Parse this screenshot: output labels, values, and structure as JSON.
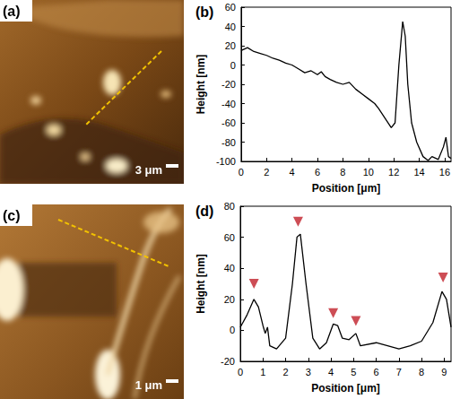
{
  "images": [
    {
      "label": "(a)",
      "scale_bar": "3 μm"
    },
    {
      "label": "(c)",
      "scale_bar": "1 μm"
    }
  ],
  "chart_data": [
    {
      "type": "line",
      "label": "(b)",
      "x_label": "Position [μm]",
      "y_label": "Height [nm]",
      "x": [
        0,
        0.5,
        1,
        1.5,
        2,
        2.5,
        3,
        3.5,
        4,
        4.5,
        5,
        5.5,
        6,
        6.3,
        6.6,
        7,
        7.5,
        8,
        8.5,
        9,
        9.5,
        10,
        10.5,
        10.8,
        11.3,
        11.8,
        12.1,
        12.4,
        12.7,
        12.9,
        13.1,
        13.4,
        13.8,
        14.3,
        14.7,
        15,
        15.5,
        15.9,
        16.1,
        16.3,
        16.5
      ],
      "values": [
        15,
        18,
        14,
        12,
        10,
        7,
        5,
        2,
        0,
        -4,
        -8,
        -6,
        -10,
        -7,
        -12,
        -15,
        -18,
        -20,
        -18,
        -25,
        -30,
        -35,
        -40,
        -45,
        -55,
        -65,
        -60,
        0,
        45,
        30,
        -20,
        -60,
        -80,
        -95,
        -99,
        -95,
        -98,
        -85,
        -75,
        -95,
        -97
      ],
      "color": "#000000",
      "xlim": [
        0,
        16.5
      ],
      "xticks": [
        0,
        2,
        4,
        6,
        8,
        10,
        12,
        14,
        16
      ],
      "ylim": [
        -100,
        60
      ],
      "yticks": [
        -100,
        -80,
        -60,
        -40,
        -20,
        0,
        20,
        40,
        60
      ],
      "grid": false
    },
    {
      "type": "line",
      "label": "(d)",
      "x_label": "Position [μm]",
      "y_label": "Height [nm]",
      "x": [
        0,
        0.3,
        0.6,
        0.8,
        1.0,
        1.1,
        1.2,
        1.3,
        1.6,
        2.0,
        2.3,
        2.5,
        2.65,
        2.9,
        3.2,
        3.5,
        3.8,
        4.1,
        4.3,
        4.5,
        4.8,
        5.1,
        5.3,
        6.0,
        6.5,
        7.0,
        7.5,
        8.0,
        8.5,
        8.9,
        9.1,
        9.3
      ],
      "values": [
        2,
        10,
        20,
        15,
        3,
        -2,
        2,
        -10,
        -12,
        -5,
        30,
        60,
        62,
        30,
        -5,
        -12,
        -8,
        4,
        3,
        -5,
        -6,
        -2,
        -10,
        -8,
        -10,
        -12,
        -10,
        -7,
        5,
        25,
        20,
        2
      ],
      "color": "#000000",
      "xlim": [
        0,
        9.3
      ],
      "xticks": [
        0,
        1,
        2,
        3,
        4,
        5,
        6,
        7,
        8,
        9
      ],
      "ylim": [
        -20,
        80
      ],
      "yticks": [
        -20,
        0,
        20,
        40,
        60,
        80
      ],
      "grid": false,
      "markers": {
        "x": [
          0.6,
          2.55,
          4.1,
          5.1,
          8.95
        ],
        "y": [
          30,
          70,
          11,
          6,
          34
        ],
        "color": "#c0202a",
        "marker": "triangle_down"
      }
    }
  ]
}
